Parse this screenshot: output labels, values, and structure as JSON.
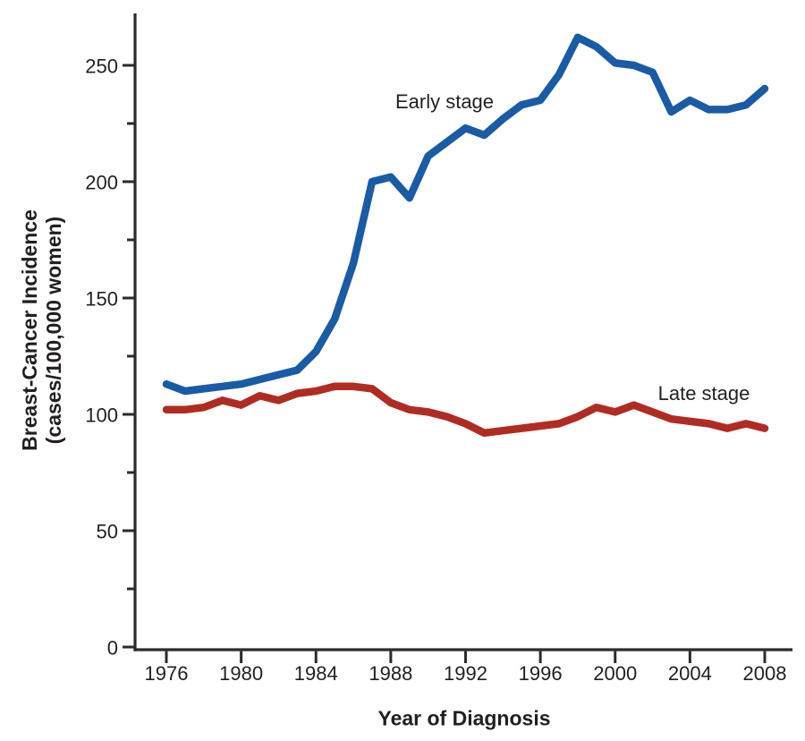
{
  "figure": {
    "xlabel": "Year of Diagnosis",
    "ylabel_line1": "Breast-Cancer Incidence",
    "ylabel_line2": "(cases/100,000 women)"
  },
  "annotations": {
    "early_label": "Early stage",
    "late_label": "Late stage"
  },
  "colors": {
    "early_stage": "#1a5ba6",
    "late_stage": "#b02c22",
    "axis": "#2d2a2b",
    "text": "#231f20"
  },
  "chart_data": {
    "type": "line",
    "title": "",
    "xlabel": "Year of Diagnosis",
    "ylabel": "Breast-Cancer Incidence (cases/100,000 women)",
    "grid": false,
    "legend_position": "inline-labels-near-lines",
    "xlim": [
      1974.3,
      2009.5
    ],
    "ylim": [
      0,
      272
    ],
    "xticks": [
      1976,
      1980,
      1984,
      1988,
      1992,
      1996,
      2000,
      2004,
      2008
    ],
    "yticks": [
      0,
      50,
      100,
      150,
      200,
      250
    ],
    "y_minor_ticks": [
      25,
      75,
      125,
      175,
      225
    ],
    "x": [
      1976,
      1977,
      1978,
      1979,
      1980,
      1981,
      1982,
      1983,
      1984,
      1985,
      1986,
      1987,
      1988,
      1989,
      1990,
      1991,
      1992,
      1993,
      1994,
      1995,
      1996,
      1997,
      1998,
      1999,
      2000,
      2001,
      2002,
      2003,
      2004,
      2005,
      2006,
      2007,
      2008
    ],
    "series": [
      {
        "name": "Early stage",
        "color": "#1a5ba6",
        "values": [
          113,
          110,
          111,
          112,
          113,
          115,
          117,
          119,
          127,
          141,
          165,
          200,
          202,
          193,
          211,
          217,
          223,
          220,
          227,
          233,
          235,
          246,
          262,
          258,
          251,
          250,
          247,
          230,
          235,
          231,
          231,
          233,
          240
        ]
      },
      {
        "name": "Late stage",
        "color": "#b02c22",
        "values": [
          102,
          102,
          103,
          106,
          104,
          108,
          106,
          109,
          110,
          112,
          112,
          111,
          105,
          102,
          101,
          99,
          96,
          92,
          93,
          94,
          95,
          96,
          99,
          103,
          101,
          104,
          101,
          98,
          97,
          96,
          94,
          96,
          94
        ]
      }
    ]
  }
}
